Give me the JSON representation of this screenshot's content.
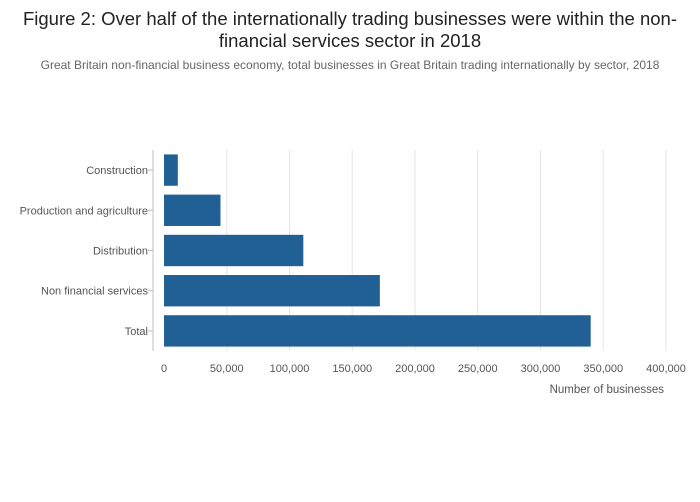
{
  "title": "Figure 2: Over half of the internationally trading businesses were within the non-financial services sector in 2018",
  "subtitle": "Great Britain non-financial business economy, total businesses in Great Britain trading internationally by sector, 2018",
  "colors": {
    "bar": "#206095",
    "grid": "#e6e6e6",
    "axis": "#bfbfbf"
  },
  "chart_data": {
    "type": "bar",
    "orientation": "horizontal",
    "categories": [
      "Construction",
      "Production and agriculture",
      "Distribution",
      "Non financial services",
      "Total"
    ],
    "values": [
      11000,
      45000,
      111000,
      172000,
      340000
    ],
    "xlabel": "Number of businesses",
    "ylabel": "",
    "xlim": [
      0,
      400000
    ],
    "xticks": [
      0,
      50000,
      100000,
      150000,
      200000,
      250000,
      300000,
      350000,
      400000
    ],
    "xtick_labels": [
      "0",
      "50,000",
      "100,000",
      "150,000",
      "200,000",
      "250,000",
      "300,000",
      "350,000",
      "400,000"
    ],
    "grid": true,
    "legend": "none"
  }
}
